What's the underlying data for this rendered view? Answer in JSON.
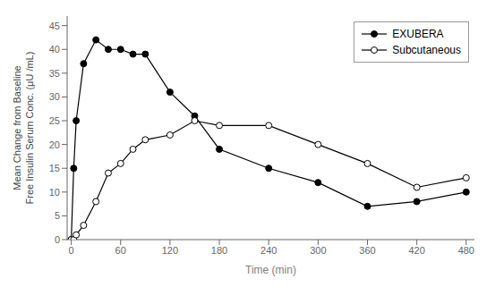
{
  "chart_data": {
    "type": "line",
    "xlabel": "Time (min)",
    "ylabel": [
      "Mean Change from Baseline",
      "Free Insulin Serum Conc. (μU /mL)"
    ],
    "x": [
      0,
      3,
      6,
      15,
      30,
      45,
      60,
      75,
      90,
      120,
      150,
      180,
      240,
      300,
      360,
      420,
      480
    ],
    "series": [
      {
        "name": "EXUBERA",
        "color": "#000000",
        "marker": "filled_circle",
        "values": [
          0,
          15,
          25,
          37,
          42,
          40,
          40,
          39,
          39,
          31,
          26,
          19,
          15,
          12,
          7,
          8,
          10
        ]
      },
      {
        "name": "Subcutaneous",
        "color": "#000000",
        "marker": "open_circle",
        "values": [
          0,
          0,
          1,
          3,
          8,
          14,
          16,
          19,
          21,
          22,
          25,
          24,
          24,
          20,
          16,
          11,
          13
        ]
      }
    ],
    "xlim": [
      -5,
      490
    ],
    "xticks": [
      0,
      60,
      120,
      180,
      240,
      300,
      360,
      420,
      480
    ],
    "ylim": [
      0,
      47
    ],
    "yticks": [
      0,
      5,
      10,
      15,
      20,
      25,
      30,
      35,
      40,
      45
    ],
    "grid": false,
    "legend": "upper right"
  }
}
